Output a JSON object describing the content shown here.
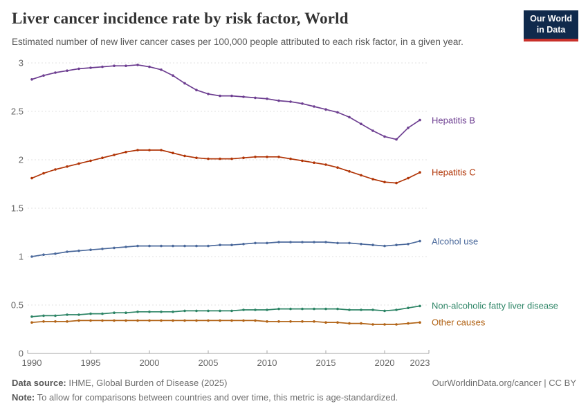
{
  "header": {
    "title": "Liver cancer incidence rate by risk factor, World",
    "subtitle": "Estimated number of new liver cancer cases per 100,000 people attributed to each risk factor, in a given year."
  },
  "logo": {
    "line1": "Our World",
    "line2": "in Data",
    "bg_color": "#102a4c",
    "accent_color": "#c8302a"
  },
  "footer": {
    "data_source_label": "Data source:",
    "data_source_value": " IHME, Global Burden of Disease (2025)",
    "credit": "OurWorldinData.org/cancer | CC BY",
    "note_label": "Note:",
    "note_value": " To allow for comparisons between countries and over time, this metric is age-standardized."
  },
  "chart_data": {
    "type": "line",
    "title": "Liver cancer incidence rate by risk factor, World",
    "xlabel": "",
    "ylabel": "",
    "ylim": [
      0,
      3
    ],
    "yticks": [
      0,
      0.5,
      1,
      1.5,
      2,
      2.5,
      3
    ],
    "xticks": [
      1990,
      1995,
      2000,
      2005,
      2010,
      2015,
      2020,
      2023
    ],
    "grid": "dashed-horizontal",
    "legend_position": "right-of-line-end",
    "x": [
      1990,
      1991,
      1992,
      1993,
      1994,
      1995,
      1996,
      1997,
      1998,
      1999,
      2000,
      2001,
      2002,
      2003,
      2004,
      2005,
      2006,
      2007,
      2008,
      2009,
      2010,
      2011,
      2012,
      2013,
      2014,
      2015,
      2016,
      2017,
      2018,
      2019,
      2020,
      2021,
      2022,
      2023
    ],
    "series": [
      {
        "name": "Hepatitis B",
        "color": "#6d3e91",
        "values": [
          2.83,
          2.87,
          2.9,
          2.92,
          2.94,
          2.95,
          2.96,
          2.97,
          2.97,
          2.98,
          2.96,
          2.93,
          2.87,
          2.79,
          2.72,
          2.68,
          2.66,
          2.66,
          2.65,
          2.64,
          2.63,
          2.61,
          2.6,
          2.58,
          2.55,
          2.52,
          2.49,
          2.44,
          2.37,
          2.3,
          2.24,
          2.21,
          2.33,
          2.41
        ]
      },
      {
        "name": "Hepatitis C",
        "color": "#b13507",
        "values": [
          1.81,
          1.86,
          1.9,
          1.93,
          1.96,
          1.99,
          2.02,
          2.05,
          2.08,
          2.1,
          2.1,
          2.1,
          2.07,
          2.04,
          2.02,
          2.01,
          2.01,
          2.01,
          2.02,
          2.03,
          2.03,
          2.03,
          2.01,
          1.99,
          1.97,
          1.95,
          1.92,
          1.88,
          1.84,
          1.8,
          1.77,
          1.76,
          1.81,
          1.87
        ]
      },
      {
        "name": "Alcohol use",
        "color": "#4c6a9c",
        "values": [
          1.0,
          1.02,
          1.03,
          1.05,
          1.06,
          1.07,
          1.08,
          1.09,
          1.1,
          1.11,
          1.11,
          1.11,
          1.11,
          1.11,
          1.11,
          1.11,
          1.12,
          1.12,
          1.13,
          1.14,
          1.14,
          1.15,
          1.15,
          1.15,
          1.15,
          1.15,
          1.14,
          1.14,
          1.13,
          1.12,
          1.11,
          1.12,
          1.13,
          1.16
        ]
      },
      {
        "name": "Non-alcoholic fatty liver disease",
        "color": "#2c8465",
        "values": [
          0.38,
          0.39,
          0.39,
          0.4,
          0.4,
          0.41,
          0.41,
          0.42,
          0.42,
          0.43,
          0.43,
          0.43,
          0.43,
          0.44,
          0.44,
          0.44,
          0.44,
          0.44,
          0.45,
          0.45,
          0.45,
          0.46,
          0.46,
          0.46,
          0.46,
          0.46,
          0.46,
          0.45,
          0.45,
          0.45,
          0.44,
          0.45,
          0.47,
          0.49
        ]
      },
      {
        "name": "Other causes",
        "color": "#b16214",
        "values": [
          0.32,
          0.33,
          0.33,
          0.33,
          0.34,
          0.34,
          0.34,
          0.34,
          0.34,
          0.34,
          0.34,
          0.34,
          0.34,
          0.34,
          0.34,
          0.34,
          0.34,
          0.34,
          0.34,
          0.34,
          0.33,
          0.33,
          0.33,
          0.33,
          0.33,
          0.32,
          0.32,
          0.31,
          0.31,
          0.3,
          0.3,
          0.3,
          0.31,
          0.32
        ]
      }
    ]
  }
}
